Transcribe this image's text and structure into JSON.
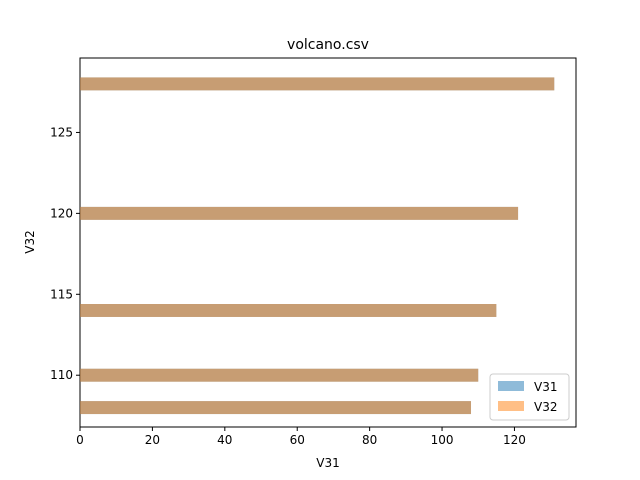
{
  "chart_data": {
    "type": "bar",
    "orientation": "horizontal",
    "title": "volcano.csv",
    "xlabel": "V31",
    "ylabel": "V32",
    "xlim": [
      0,
      137
    ],
    "ylim": [
      106.8,
      129.6
    ],
    "xticks": [
      0,
      20,
      40,
      60,
      80,
      100,
      120
    ],
    "yticks": [
      110,
      115,
      120,
      125
    ],
    "grid": false,
    "legend_position": "lower-right",
    "bar_thickness": 0.8,
    "series": [
      {
        "name": "V31",
        "color": "#1f77b4",
        "opacity": 0.5,
        "points": [
          {
            "y": 108,
            "x": 108
          },
          {
            "y": 110,
            "x": 110
          },
          {
            "y": 114,
            "x": 115
          },
          {
            "y": 120,
            "x": 121
          },
          {
            "y": 128,
            "x": 131
          }
        ]
      },
      {
        "name": "V32",
        "color": "#ff7f0e",
        "opacity": 0.5,
        "points": [
          {
            "y": 108,
            "x": 108
          },
          {
            "y": 110,
            "x": 110
          },
          {
            "y": 114,
            "x": 115
          },
          {
            "y": 120,
            "x": 121
          },
          {
            "y": 128,
            "x": 131
          }
        ]
      }
    ]
  }
}
